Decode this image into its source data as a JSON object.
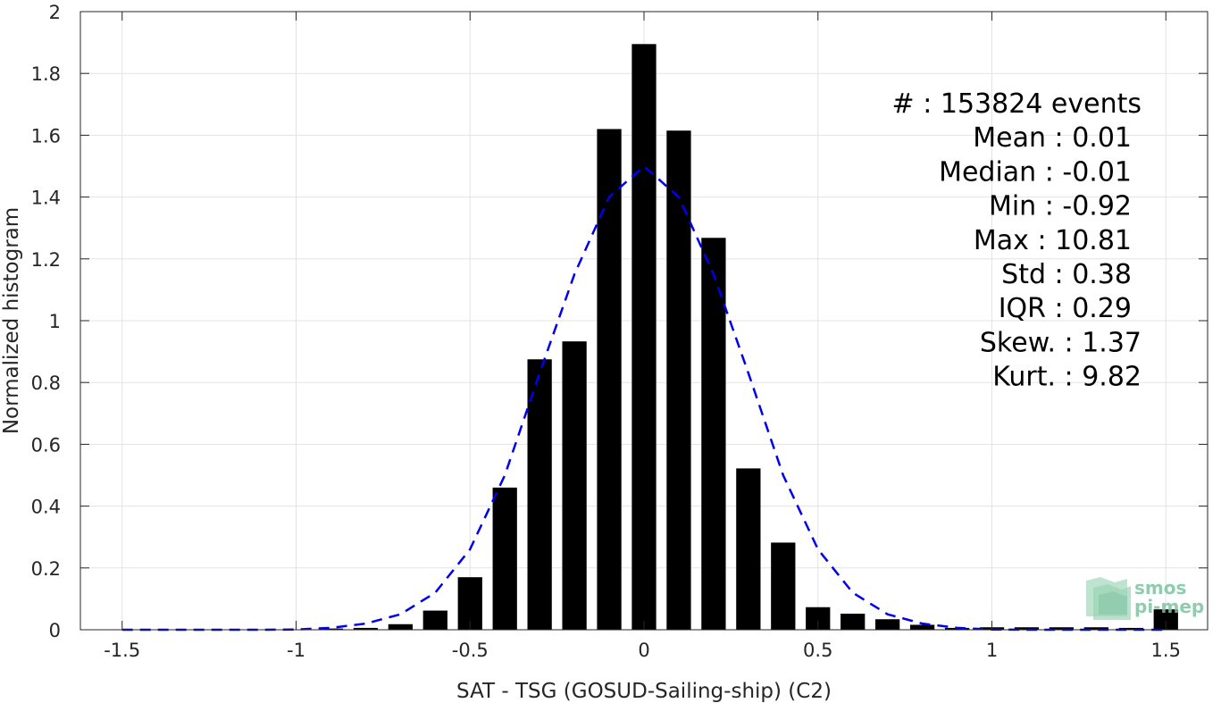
{
  "chart_data": {
    "type": "bar",
    "xlabel": "SAT - TSG (GOSUD-Sailing-ship) (C2)",
    "ylabel": "Normalized histogram",
    "xlim": [
      -1.62,
      1.62
    ],
    "ylim": [
      0,
      2
    ],
    "xticks": [
      -1.5,
      -1,
      -0.5,
      0,
      0.5,
      1,
      1.5
    ],
    "xtick_labels": [
      "-1.5",
      "-1",
      "-0.5",
      "0",
      "0.5",
      "1",
      "1.5"
    ],
    "yticks": [
      0,
      0.2,
      0.4,
      0.6,
      0.8,
      1,
      1.2,
      1.4,
      1.6,
      1.8,
      2
    ],
    "ytick_labels": [
      "0",
      "0.2",
      "0.4",
      "0.6",
      "0.8",
      "1",
      "1.2",
      "1.4",
      "1.6",
      "1.8",
      "2"
    ],
    "grid": true,
    "bar_width": 0.07,
    "x": [
      -1.5,
      -1.4,
      -1.3,
      -1.2,
      -1.1,
      -1.0,
      -0.9,
      -0.8,
      -0.7,
      -0.6,
      -0.5,
      -0.4,
      -0.3,
      -0.2,
      -0.1,
      0.0,
      0.1,
      0.2,
      0.3,
      0.4,
      0.5,
      0.6,
      0.7,
      0.8,
      0.9,
      1.0,
      1.1,
      1.2,
      1.3,
      1.4,
      1.5
    ],
    "values": [
      0.0,
      0.0,
      0.0,
      0.0,
      0.0,
      0.0,
      0.004,
      0.006,
      0.018,
      0.062,
      0.17,
      0.46,
      0.875,
      0.933,
      1.62,
      1.895,
      1.615,
      1.268,
      0.522,
      0.282,
      0.073,
      0.052,
      0.034,
      0.016,
      0.006,
      0.008,
      0.008,
      0.008,
      0.008,
      0.006,
      0.066
    ],
    "fit_curve": {
      "style": "dashed",
      "color": "#0000ee",
      "x": [
        -1.5,
        -1.4,
        -1.3,
        -1.2,
        -1.1,
        -1.0,
        -0.9,
        -0.8,
        -0.7,
        -0.6,
        -0.5,
        -0.4,
        -0.3,
        -0.2,
        -0.1,
        0.0,
        0.1,
        0.2,
        0.3,
        0.4,
        0.5,
        0.6,
        0.7,
        0.8,
        0.9,
        1.0,
        1.1,
        1.2,
        1.3,
        1.4,
        1.5
      ],
      "y": [
        0.0,
        0.0,
        0.0,
        0.0,
        0.0,
        0.001,
        0.006,
        0.02,
        0.05,
        0.12,
        0.26,
        0.5,
        0.83,
        1.15,
        1.4,
        1.5,
        1.4,
        1.15,
        0.83,
        0.5,
        0.26,
        0.12,
        0.05,
        0.02,
        0.006,
        0.001,
        0.0,
        0.0,
        0.0,
        0.0,
        0.0
      ]
    },
    "bar_color": "#000000",
    "stats": [
      "#  : 153824 events",
      "Mean : 0.01",
      "Median : -0.01",
      "Min : -0.92",
      "Max : 10.81",
      "Std : 0.38",
      "IQR : 0.29",
      "Skew. : 1.37",
      "Kurt. : 9.82"
    ],
    "logo": [
      "smos",
      "pi-mep"
    ]
  }
}
